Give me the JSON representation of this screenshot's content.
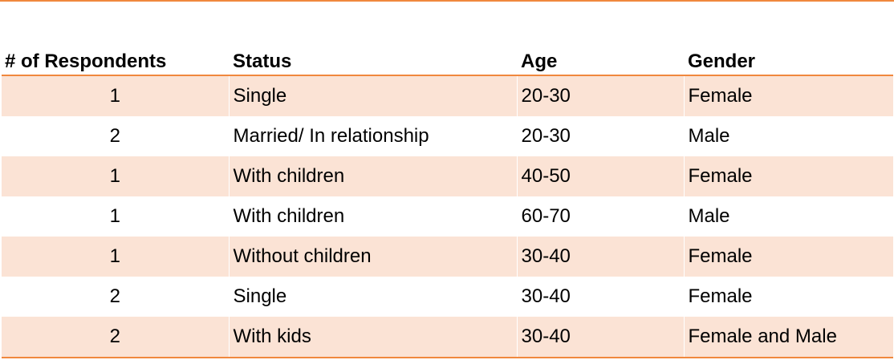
{
  "table": {
    "headers": [
      "# of Respondents",
      "Status",
      "Age",
      "Gender"
    ],
    "rows": [
      [
        "1",
        "Single",
        "20-30",
        "Female"
      ],
      [
        "2",
        "Married/ In relationship",
        "20-30",
        "Male"
      ],
      [
        "1",
        "With children",
        "40-50",
        "Female"
      ],
      [
        "1",
        "With children",
        "60-70",
        "Male"
      ],
      [
        "1",
        "Without children",
        "30-40",
        "Female"
      ],
      [
        "2",
        "Single",
        "30-40",
        "Female"
      ],
      [
        "2",
        "With kids",
        "30-40",
        "Female and Male"
      ]
    ]
  },
  "colors": {
    "accent": "#f0883e",
    "row_shade": "#fbe3d5"
  }
}
